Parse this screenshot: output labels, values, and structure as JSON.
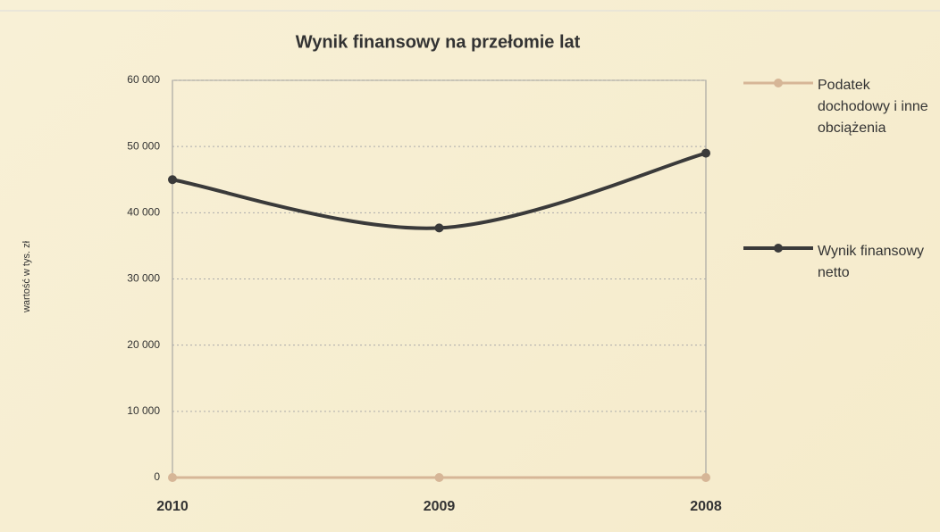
{
  "chart_data": {
    "type": "line",
    "title": "Wynik finansowy na przełomie lat",
    "y_label": "wartość w tys. zł",
    "categories": [
      "2010",
      "2009",
      "2008"
    ],
    "series": [
      {
        "name": "Podatek dochodowy i inne obciążenia",
        "color": "#d6b697",
        "values": [
          0,
          0,
          0
        ]
      },
      {
        "name": "Wynik finansowy netto",
        "color": "#3a3a3a",
        "values": [
          45000,
          37700,
          49000
        ]
      }
    ],
    "ylim": [
      0,
      60000
    ],
    "yticks": [
      0,
      {
        "value": 10000,
        "label": "10 000"
      },
      {
        "value": 20000,
        "label": "20 000"
      },
      {
        "value": 30000,
        "label": "30 000"
      },
      {
        "value": 40000,
        "label": "40 000"
      },
      {
        "value": 50000,
        "label": "50 000"
      },
      {
        "value": 60000,
        "label": "60 000"
      }
    ],
    "grid": true,
    "legend": "right"
  }
}
